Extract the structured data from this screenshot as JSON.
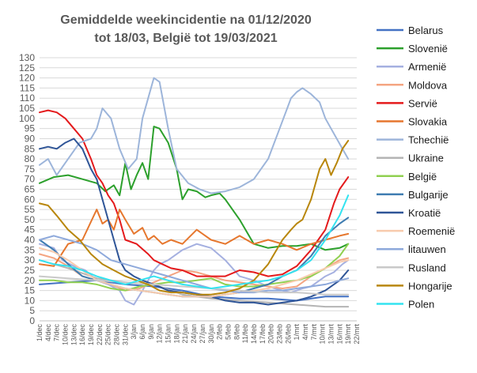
{
  "chart_data": {
    "type": "line",
    "title_lines": [
      "Gemiddelde weekincidentie  na 01/12/2020",
      "tot 18/03, België tot 19/03/2021"
    ],
    "ylim": [
      0,
      130
    ],
    "yticks": [
      0,
      5,
      10,
      15,
      20,
      25,
      30,
      35,
      40,
      45,
      50,
      55,
      60,
      65,
      70,
      75,
      80,
      85,
      90,
      95,
      100,
      105,
      110,
      115,
      120,
      125,
      130
    ],
    "x_labels": [
      "1/dec",
      "4/dec",
      "7/dec",
      "10/dec",
      "13/dec",
      "16/dec",
      "19/dec",
      "22/dec",
      "25/dec",
      "28/dec",
      "31/dec",
      "3/jan",
      "6/jan",
      "9/jan",
      "12/jan",
      "15/jan",
      "18/jan",
      "21/jan",
      "24/jan",
      "27/jan",
      "30/jan",
      "2/feb",
      "5/feb",
      "8/feb",
      "11/feb",
      "14/feb",
      "17/feb",
      "20/feb",
      "23/feb",
      "26/feb",
      "1/mrt",
      "4/mrt",
      "7/mrt",
      "10/mrt",
      "13/mrt",
      "16/mrt",
      "19/mrt",
      "22/mrt"
    ],
    "x_count": 112,
    "grid": true,
    "legend_position": "right",
    "series": [
      {
        "name": "Belarus",
        "color": "#4472C4",
        "width": 2,
        "x": [
          0,
          10,
          20,
          30,
          40,
          50,
          60,
          70,
          80,
          90,
          100,
          108
        ],
        "y": [
          18,
          19,
          20,
          18,
          17,
          15,
          12,
          11,
          11,
          10,
          12,
          12
        ]
      },
      {
        "name": "Slovenië",
        "color": "#2CA02C",
        "width": 2,
        "x": [
          0,
          5,
          10,
          15,
          20,
          23,
          26,
          28,
          30,
          32,
          34,
          36,
          38,
          40,
          42,
          45,
          48,
          50,
          52,
          55,
          58,
          60,
          63,
          65,
          70,
          75,
          80,
          85,
          90,
          95,
          100,
          105,
          108
        ],
        "y": [
          68,
          71,
          72,
          70,
          68,
          64,
          67,
          62,
          78,
          65,
          72,
          78,
          70,
          96,
          95,
          88,
          75,
          60,
          65,
          64,
          61,
          62,
          63,
          60,
          50,
          38,
          36,
          37,
          37,
          38,
          35,
          36,
          38
        ]
      },
      {
        "name": "Armenië",
        "color": "#A5B0E0",
        "width": 2,
        "x": [
          0,
          5,
          8,
          12,
          16,
          20,
          24,
          28,
          30,
          33,
          36,
          38,
          40,
          42,
          45,
          50,
          55,
          60,
          65,
          70,
          75,
          80,
          85,
          88,
          90,
          92,
          95,
          98,
          100,
          103,
          106,
          108
        ],
        "y": [
          38,
          36,
          30,
          27,
          25,
          20,
          18,
          15,
          10,
          8,
          15,
          20,
          25,
          28,
          30,
          35,
          38,
          36,
          30,
          22,
          20,
          17,
          15,
          14,
          15,
          16,
          17,
          20,
          22,
          24,
          28,
          30
        ]
      },
      {
        "name": "Moldova",
        "color": "#F4A582",
        "width": 2,
        "x": [
          0,
          5,
          10,
          15,
          20,
          25,
          30,
          35,
          40,
          45,
          50,
          55,
          60,
          65,
          70,
          75,
          80,
          85,
          90,
          95,
          100,
          105,
          108
        ],
        "y": [
          33,
          31,
          27,
          22,
          20,
          18,
          15,
          16,
          19,
          22,
          25,
          24,
          22,
          20,
          19,
          18,
          17,
          16,
          17,
          22,
          26,
          30,
          31
        ]
      },
      {
        "name": "Servië",
        "color": "#E41A1C",
        "width": 2,
        "x": [
          0,
          3,
          6,
          9,
          12,
          15,
          18,
          20,
          22,
          24,
          26,
          28,
          30,
          34,
          38,
          40,
          43,
          46,
          50,
          55,
          60,
          65,
          70,
          75,
          80,
          85,
          90,
          95,
          100,
          103,
          105,
          108
        ],
        "y": [
          103,
          104,
          103,
          100,
          95,
          90,
          80,
          72,
          68,
          62,
          58,
          50,
          40,
          38,
          33,
          30,
          28,
          26,
          25,
          22,
          22,
          22,
          25,
          24,
          22,
          23,
          27,
          35,
          45,
          58,
          65,
          71
        ]
      },
      {
        "name": "Slovakia",
        "color": "#E6772E",
        "width": 2,
        "x": [
          0,
          5,
          10,
          15,
          20,
          22,
          24,
          26,
          28,
          30,
          33,
          36,
          38,
          40,
          43,
          46,
          50,
          55,
          60,
          65,
          70,
          75,
          80,
          85,
          90,
          95,
          100,
          105,
          108
        ],
        "y": [
          28,
          27,
          38,
          40,
          55,
          48,
          50,
          45,
          55,
          50,
          43,
          46,
          40,
          42,
          38,
          40,
          38,
          45,
          40,
          38,
          42,
          38,
          40,
          38,
          35,
          38,
          40,
          42,
          43
        ]
      },
      {
        "name": "Tchechië",
        "color": "#9DB5DA",
        "width": 2,
        "x": [
          0,
          3,
          6,
          10,
          14,
          18,
          20,
          22,
          25,
          28,
          31,
          34,
          36,
          38,
          40,
          42,
          45,
          48,
          52,
          56,
          60,
          65,
          70,
          75,
          80,
          84,
          88,
          90,
          92,
          95,
          98,
          100,
          102,
          104,
          106,
          108
        ],
        "y": [
          77,
          80,
          72,
          80,
          88,
          90,
          95,
          105,
          100,
          85,
          75,
          80,
          100,
          110,
          120,
          118,
          95,
          75,
          68,
          65,
          63,
          64,
          66,
          70,
          80,
          95,
          110,
          113,
          115,
          112,
          108,
          100,
          95,
          90,
          85,
          80
        ]
      },
      {
        "name": "Ukraine",
        "color": "#B4B4B4",
        "width": 2,
        "x": [
          0,
          10,
          20,
          30,
          40,
          50,
          60,
          70,
          80,
          90,
          100,
          108
        ],
        "y": [
          30,
          26,
          21,
          19,
          18,
          13,
          11,
          10,
          9,
          8,
          7,
          7
        ]
      },
      {
        "name": "België",
        "color": "#90D050",
        "width": 2,
        "x": [
          0,
          5,
          10,
          15,
          20,
          25,
          30,
          35,
          40,
          45,
          50,
          55,
          60,
          65,
          70,
          75,
          80,
          85,
          90,
          95,
          100,
          105,
          108
        ],
        "y": [
          20,
          20,
          19,
          19,
          18,
          16,
          15,
          17,
          18,
          19,
          19,
          20,
          21,
          18,
          17,
          17,
          18,
          19,
          20,
          22,
          26,
          32,
          38
        ]
      },
      {
        "name": "Bulgarije",
        "color": "#3E7CB1",
        "width": 2,
        "x": [
          0,
          5,
          10,
          15,
          20,
          25,
          30,
          35,
          40,
          45,
          50,
          55,
          60,
          65,
          70,
          75,
          80,
          85,
          90,
          95,
          100,
          105,
          108
        ],
        "y": [
          40,
          35,
          28,
          22,
          20,
          18,
          16,
          15,
          14,
          13,
          12,
          12,
          12,
          13,
          14,
          16,
          18,
          22,
          25,
          32,
          42,
          48,
          51
        ]
      },
      {
        "name": "Kroatië",
        "color": "#2F5597",
        "width": 2,
        "x": [
          0,
          3,
          6,
          9,
          12,
          15,
          18,
          20,
          22,
          24,
          26,
          28,
          30,
          33,
          36,
          40,
          45,
          50,
          55,
          60,
          65,
          70,
          75,
          80,
          85,
          90,
          95,
          100,
          105,
          108
        ],
        "y": [
          85,
          86,
          85,
          88,
          90,
          85,
          75,
          70,
          60,
          50,
          40,
          30,
          25,
          22,
          20,
          18,
          15,
          14,
          13,
          12,
          10,
          9,
          9,
          8,
          9,
          10,
          12,
          15,
          20,
          25
        ]
      },
      {
        "name": "Roemenië",
        "color": "#F8CBAD",
        "width": 2,
        "x": [
          0,
          5,
          10,
          15,
          20,
          25,
          30,
          35,
          40,
          45,
          50,
          55,
          60,
          65,
          70,
          75,
          80,
          85,
          90,
          95,
          100,
          105,
          108
        ],
        "y": [
          36,
          34,
          30,
          25,
          20,
          18,
          16,
          15,
          14,
          13,
          12,
          12,
          12,
          13,
          14,
          15,
          16,
          18,
          20,
          23,
          26,
          29,
          30
        ]
      },
      {
        "name": "litauwen",
        "color": "#8EA9DB",
        "width": 2,
        "x": [
          0,
          5,
          10,
          15,
          20,
          25,
          30,
          35,
          40,
          45,
          50,
          55,
          60,
          65,
          70,
          75,
          80,
          85,
          90,
          95,
          100,
          105,
          108
        ],
        "y": [
          40,
          42,
          40,
          38,
          35,
          30,
          28,
          26,
          24,
          22,
          20,
          18,
          16,
          15,
          14,
          14,
          15,
          15,
          16,
          17,
          18,
          20,
          21
        ]
      },
      {
        "name": "Rusland",
        "color": "#C9C9C9",
        "width": 2,
        "x": [
          0,
          10,
          20,
          30,
          40,
          50,
          60,
          70,
          80,
          90,
          100,
          108
        ],
        "y": [
          22,
          21,
          20,
          19,
          18,
          17,
          16,
          15,
          14,
          14,
          13,
          13
        ]
      },
      {
        "name": "Hongarije",
        "color": "#B8860B",
        "width": 2,
        "x": [
          0,
          3,
          6,
          10,
          14,
          18,
          22,
          26,
          30,
          34,
          38,
          42,
          46,
          50,
          55,
          60,
          65,
          70,
          75,
          80,
          85,
          88,
          90,
          92,
          95,
          98,
          100,
          102,
          104,
          106,
          108
        ],
        "y": [
          58,
          57,
          52,
          45,
          40,
          33,
          28,
          25,
          22,
          20,
          18,
          15,
          14,
          14,
          13,
          13,
          14,
          16,
          20,
          28,
          40,
          45,
          48,
          50,
          60,
          75,
          80,
          72,
          78,
          85,
          89
        ]
      },
      {
        "name": "Polen",
        "color": "#33E3F0",
        "width": 2,
        "x": [
          0,
          5,
          10,
          15,
          20,
          25,
          30,
          35,
          40,
          45,
          50,
          55,
          60,
          65,
          70,
          75,
          80,
          85,
          90,
          95,
          100,
          105,
          108
        ],
        "y": [
          30,
          28,
          27,
          25,
          22,
          20,
          18,
          20,
          22,
          20,
          18,
          17,
          16,
          17,
          18,
          19,
          20,
          22,
          25,
          30,
          40,
          52,
          62
        ]
      }
    ]
  }
}
